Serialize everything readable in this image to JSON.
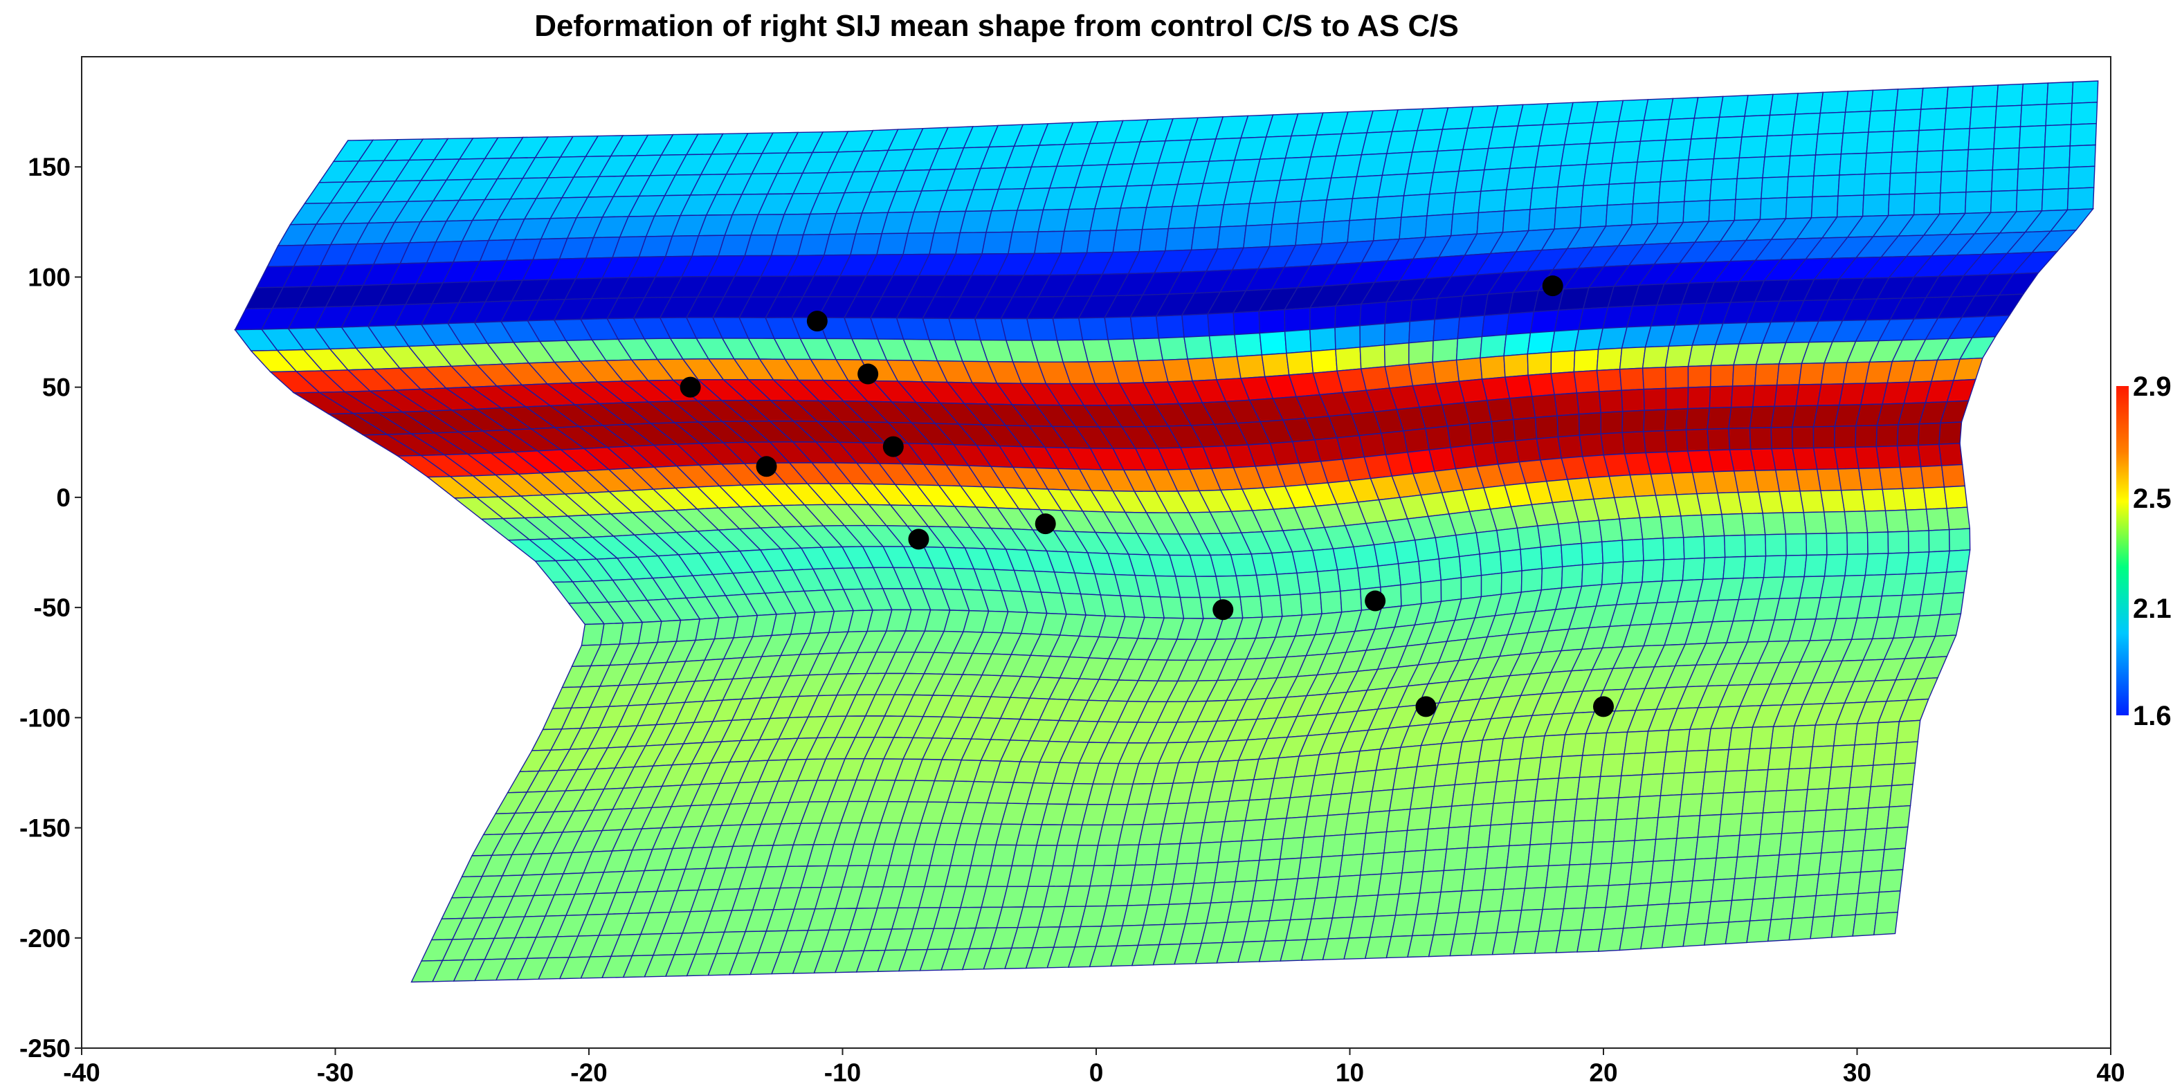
{
  "chart_data": {
    "type": "heatmap",
    "title": "Deformation of right SIJ mean shape from control C/S to AS C/S",
    "xlabel": "",
    "ylabel": "",
    "xlim": [
      -40,
      40
    ],
    "ylim": [
      -250,
      200
    ],
    "x_ticks": [
      "-40",
      "-30",
      "-20",
      "-10",
      "0",
      "10",
      "20",
      "30",
      "40"
    ],
    "y_ticks": [
      "150",
      "100",
      "50",
      "0",
      "-50",
      "-100",
      "-150",
      "-200",
      "-250"
    ],
    "colorbar": {
      "min": 1.6,
      "max": 2.9,
      "tick_labels": [
        "2.9",
        "2.5",
        "2.1",
        "1.6"
      ],
      "tick_values": [
        2.9,
        2.5,
        2.1,
        1.6
      ],
      "colormap": "jet"
    },
    "grid_outline": {
      "top_edge": [
        [
          -29.5,
          162
        ],
        [
          -10,
          166
        ],
        [
          10,
          175
        ],
        [
          39.5,
          189
        ]
      ],
      "bottom_edge": [
        [
          -27,
          -220
        ],
        [
          0,
          -213
        ],
        [
          20,
          -206
        ],
        [
          31.5,
          -198
        ]
      ],
      "left_edge": [
        [
          -29.5,
          162
        ],
        [
          -32,
          120
        ],
        [
          -34,
          75
        ],
        [
          -32,
          50
        ],
        [
          -27,
          15
        ],
        [
          -22,
          -30
        ],
        [
          -20,
          -60
        ],
        [
          -22,
          -110
        ],
        [
          -24.5,
          -160
        ],
        [
          -27,
          -220
        ]
      ],
      "right_edge": [
        [
          39.5,
          189
        ],
        [
          39.3,
          130
        ],
        [
          37,
          100
        ],
        [
          35,
          65
        ],
        [
          34,
          30
        ],
        [
          34.5,
          -20
        ],
        [
          34,
          -60
        ],
        [
          32.5,
          -100
        ],
        [
          32,
          -150
        ],
        [
          31.5,
          -198
        ]
      ],
      "rows": 40,
      "cols": 70
    },
    "color_bands": [
      {
        "y": 165,
        "value": 2.05
      },
      {
        "y": 135,
        "value": 2.02
      },
      {
        "y": 115,
        "value": 1.92
      },
      {
        "y": 100,
        "value": 1.72
      },
      {
        "y": 90,
        "value": 1.65
      },
      {
        "y": 80,
        "value": 1.75
      },
      {
        "y": 72,
        "value": 2.0
      },
      {
        "y": 65,
        "value": 2.3
      },
      {
        "y": 58,
        "value": 2.55
      },
      {
        "y": 50,
        "value": 2.75
      },
      {
        "y": 40,
        "value": 2.85
      },
      {
        "y": 30,
        "value": 2.86
      },
      {
        "y": 20,
        "value": 2.82
      },
      {
        "y": 10,
        "value": 2.6
      },
      {
        "y": 0,
        "value": 2.4
      },
      {
        "y": -10,
        "value": 2.25
      },
      {
        "y": -25,
        "value": 2.15
      },
      {
        "y": -45,
        "value": 2.2
      },
      {
        "y": -70,
        "value": 2.25
      },
      {
        "y": -95,
        "value": 2.3
      },
      {
        "y": -120,
        "value": 2.3
      },
      {
        "y": -160,
        "value": 2.25
      },
      {
        "y": -220,
        "value": 2.25
      }
    ],
    "landmarks": [
      {
        "x": 18,
        "y": 96
      },
      {
        "x": -11,
        "y": 80
      },
      {
        "x": -9,
        "y": 56
      },
      {
        "x": -16,
        "y": 50
      },
      {
        "x": -8,
        "y": 23
      },
      {
        "x": -13,
        "y": 14
      },
      {
        "x": -7,
        "y": -19
      },
      {
        "x": -2,
        "y": -12
      },
      {
        "x": 5,
        "y": -51
      },
      {
        "x": 11,
        "y": -47
      },
      {
        "x": 13,
        "y": -95
      },
      {
        "x": 20,
        "y": -95
      }
    ]
  }
}
